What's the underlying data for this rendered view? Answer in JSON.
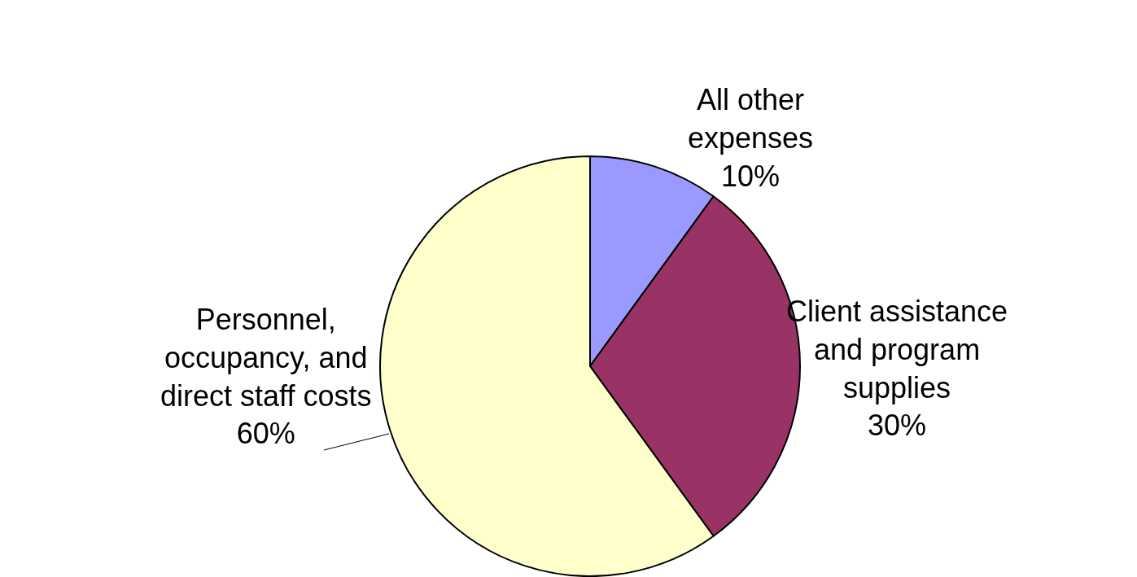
{
  "chart_data": {
    "type": "pie",
    "categories": [
      "All other expenses",
      "Client assistance and program supplies",
      "Personnel, occupancy, and direct staff costs"
    ],
    "values": [
      10,
      30,
      60
    ],
    "value_labels": [
      "10%",
      "30%",
      "60%"
    ],
    "colors": [
      "#9999ff",
      "#993366",
      "#ffffcc"
    ],
    "legend": false
  }
}
